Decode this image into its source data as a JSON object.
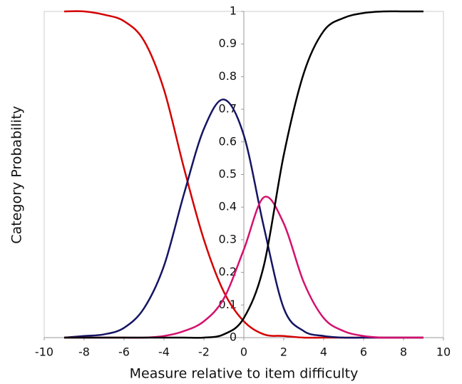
{
  "chart_data": {
    "type": "line",
    "x_label": "Measure relative to item difficulty",
    "y_label": "Category Probability",
    "x": [
      -9,
      -8,
      -7,
      -6,
      -5,
      -4,
      -3,
      -2,
      -1,
      0,
      1,
      2,
      3,
      4,
      5,
      6,
      7,
      8,
      9
    ],
    "series": [
      {
        "color": "#d40000",
        "values": [
          1.0,
          1.0,
          0.99,
          0.97,
          0.91,
          0.76,
          0.52,
          0.3,
          0.14,
          0.05,
          0.01,
          0.005,
          0,
          0,
          0,
          0,
          0,
          0,
          0
        ]
      },
      {
        "color": "#141464",
        "values": [
          0,
          0.005,
          0.01,
          0.03,
          0.09,
          0.22,
          0.44,
          0.64,
          0.73,
          0.62,
          0.34,
          0.09,
          0.02,
          0.005,
          0,
          0,
          0,
          0,
          0
        ]
      },
      {
        "color": "#d4106e",
        "values": [
          0,
          0,
          0,
          0,
          0,
          0.005,
          0.02,
          0.05,
          0.12,
          0.27,
          0.43,
          0.35,
          0.17,
          0.06,
          0.02,
          0.005,
          0,
          0,
          0
        ]
      },
      {
        "color": "#000000",
        "values": [
          0,
          0,
          0,
          0,
          0,
          0,
          0,
          0,
          0.01,
          0.06,
          0.22,
          0.56,
          0.81,
          0.94,
          0.98,
          0.995,
          1,
          1,
          1
        ]
      }
    ],
    "xlim": [
      -10,
      10
    ],
    "xticks": [
      -10,
      -8,
      -6,
      -4,
      -2,
      0,
      2,
      4,
      6,
      8,
      10
    ],
    "ylim": [
      0,
      1
    ],
    "yticks": [
      0,
      0.1,
      0.2,
      0.3,
      0.4,
      0.5,
      0.6,
      0.7,
      0.8,
      0.9,
      1
    ]
  }
}
